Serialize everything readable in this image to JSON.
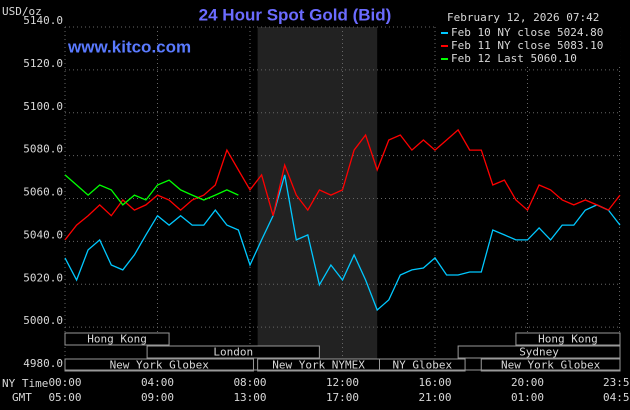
{
  "chart_data": {
    "type": "line",
    "title": "24 Hour Spot Gold (Bid)",
    "site": "www.kitco.com",
    "y_label": "USD/oz",
    "timestamp": "February 12, 2026 07:42",
    "x_row_labels": [
      "NY Time",
      "GMT"
    ],
    "xlim": [
      0,
      24
    ],
    "ylim": [
      4980,
      5140
    ],
    "xticks": [
      {
        "value": 0,
        "label": "00:00"
      },
      {
        "value": 4,
        "label": "04:00"
      },
      {
        "value": 8,
        "label": "08:00"
      },
      {
        "value": 12,
        "label": "12:00"
      },
      {
        "value": 16,
        "label": "16:00"
      },
      {
        "value": 20,
        "label": "20:00"
      },
      {
        "value": 23.98,
        "label": "23:59"
      }
    ],
    "x2ticks": [
      {
        "value": 0,
        "label": "05:00"
      },
      {
        "value": 4,
        "label": "09:00"
      },
      {
        "value": 8,
        "label": "13:00"
      },
      {
        "value": 12,
        "label": "17:00"
      },
      {
        "value": 16,
        "label": "21:00"
      },
      {
        "value": 20,
        "label": "01:00"
      },
      {
        "value": 23.98,
        "label": "04:59"
      }
    ],
    "yticks": [
      {
        "value": 4980,
        "label": "4980.0"
      },
      {
        "value": 5000,
        "label": "5000.0"
      },
      {
        "value": 5020,
        "label": "5020.0"
      },
      {
        "value": 5040,
        "label": "5040.0"
      },
      {
        "value": 5060,
        "label": "5060.0"
      },
      {
        "value": 5080,
        "label": "5080.0"
      },
      {
        "value": 5100,
        "label": "5100.0"
      },
      {
        "value": 5120,
        "label": "5120.0"
      },
      {
        "value": 5140,
        "label": "5140.0"
      }
    ],
    "grid": true,
    "shaded": [
      8.33,
      13.5
    ],
    "sessions": [
      {
        "label": "Hong Kong",
        "start": 0,
        "end": 4.5,
        "row": 0
      },
      {
        "label": "Hong Kong",
        "start": 19.5,
        "end": 24,
        "row": 0
      },
      {
        "label": "London",
        "start": 3.55,
        "end": 11,
        "row": 1
      },
      {
        "label": "Sydney",
        "start": 17,
        "end": 24,
        "row": 1
      },
      {
        "label": "New York Globex",
        "start": 0,
        "end": 8.15,
        "row": 2
      },
      {
        "label": "New York NYMEX",
        "start": 8.33,
        "end": 13.6,
        "row": 2
      },
      {
        "label": "NY Globex",
        "start": 13.6,
        "end": 17.3,
        "row": 2
      },
      {
        "label": "New York Globex",
        "start": 18,
        "end": 24,
        "row": 2
      }
    ],
    "series": [
      {
        "name": "Feb 10 NY close 5024.80",
        "color": "#00c8ff",
        "x": [
          0,
          0.5,
          1,
          1.5,
          2,
          2.5,
          3,
          3.5,
          4,
          4.5,
          5,
          5.5,
          6,
          6.5,
          7,
          7.5,
          8,
          8.5,
          9,
          9.5,
          10,
          10.5,
          11,
          11.5,
          12,
          12.5,
          13,
          13.5,
          14,
          14.5,
          15,
          15.5,
          16,
          16.5,
          17,
          17.5,
          18,
          18.5,
          19,
          19.5,
          20,
          20.5,
          21,
          21.5,
          22,
          22.5,
          23,
          23.5,
          24
        ],
        "values": [
          5032.3,
          5022,
          5036,
          5040.7,
          5029,
          5026.7,
          5033.7,
          5043,
          5052,
          5047.6,
          5052,
          5047.6,
          5047.6,
          5054.6,
          5047.6,
          5045.3,
          5029,
          5040.7,
          5052,
          5071,
          5040.7,
          5043,
          5019.7,
          5029,
          5022,
          5033.7,
          5022,
          5008,
          5012.7,
          5024.3,
          5026.7,
          5027.6,
          5032.3,
          5024.3,
          5024.3,
          5025.7,
          5025.7,
          5045.3,
          5043,
          5040.7,
          5040.7,
          5046.3,
          5040.7,
          5047.6,
          5047.6,
          5054.6,
          5057,
          5054.6,
          5047.6
        ]
      },
      {
        "name": "Feb 11 NY close 5083.10",
        "color": "#ff0000",
        "x": [
          0,
          0.5,
          1,
          1.5,
          2,
          2.5,
          3,
          3.5,
          4,
          4.5,
          5,
          5.5,
          6,
          6.5,
          7,
          7.5,
          8,
          8.5,
          9,
          9.5,
          10,
          10.5,
          11,
          11.5,
          12,
          12.5,
          13,
          13.5,
          14,
          14.5,
          15,
          15.5,
          16,
          16.5,
          17,
          17.5,
          18,
          18.5,
          19,
          19.5,
          20,
          20.5,
          21,
          21.5,
          22,
          22.5,
          23,
          23.5,
          24
        ],
        "values": [
          5040.7,
          5047.6,
          5052,
          5057,
          5052,
          5059.3,
          5054.6,
          5057,
          5061.6,
          5059.3,
          5054.6,
          5059.3,
          5061.6,
          5066.3,
          5082.6,
          5073.3,
          5064,
          5071,
          5052,
          5075.6,
          5061.6,
          5054.6,
          5064,
          5061.6,
          5064,
          5082.6,
          5089.6,
          5073.3,
          5087.3,
          5089.6,
          5082.6,
          5087.3,
          5082.6,
          5087.3,
          5092,
          5082.6,
          5082.6,
          5066.3,
          5068.6,
          5059.3,
          5054.6,
          5066.3,
          5064,
          5059.3,
          5057,
          5059.3,
          5057,
          5054.6,
          5061.6
        ]
      },
      {
        "name": "Feb 12 Last 5060.10",
        "color": "#00ff00",
        "x": [
          0,
          0.5,
          1,
          1.5,
          2,
          2.5,
          3,
          3.5,
          4,
          4.5,
          5,
          5.5,
          6,
          6.5,
          7,
          7.5
        ],
        "values": [
          5071,
          5066.3,
          5061.6,
          5066.3,
          5064,
          5057,
          5061.6,
          5059.3,
          5066.3,
          5068.6,
          5064,
          5061.6,
          5059.3,
          5061.6,
          5064,
          5061.6
        ]
      }
    ]
  }
}
